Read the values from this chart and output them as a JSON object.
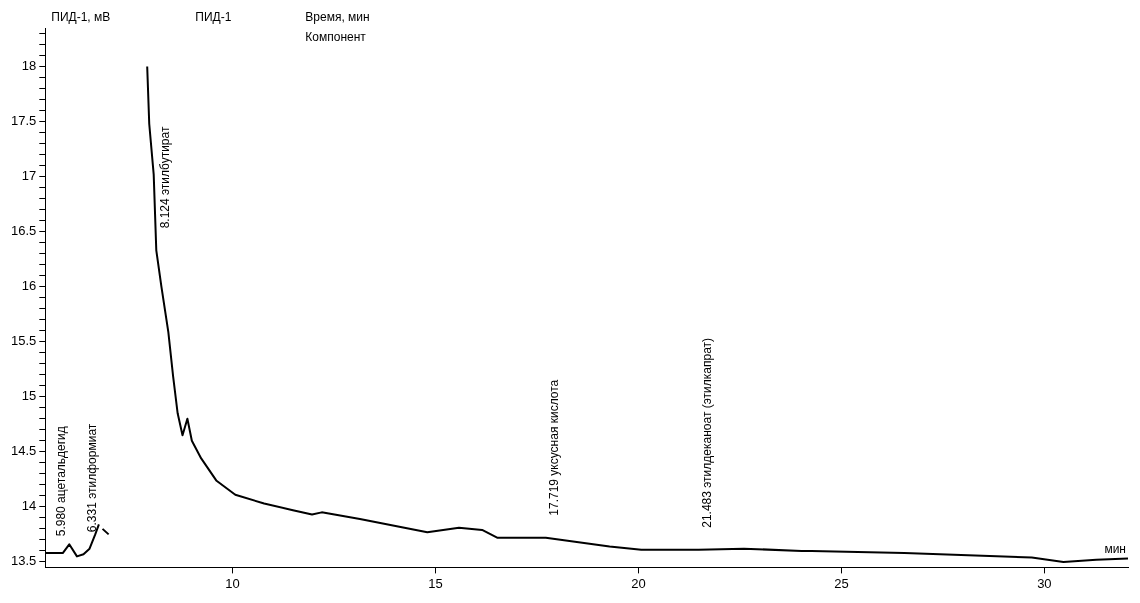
{
  "chart_data": {
    "type": "line",
    "title": "ПИД-1",
    "ylabel": "ПИД-1, мВ",
    "xlabel": "мин",
    "annotations": [
      "Время, мин",
      "Компонент",
      {
        "text": "5.980 ацетальдегид",
        "x": 5.98,
        "y": 13.66
      },
      {
        "text": "6.331 этилформиат",
        "x": 6.331,
        "y": 13.57
      },
      {
        "text": "8.124 этилбутират",
        "x": 8.124,
        "y": 16.33
      },
      {
        "text": "17.719 уксусная кислота",
        "x": 17.719,
        "y": 13.72
      },
      {
        "text": "21.483 этилдеканоат (этилкапрат)",
        "x": 21.483,
        "y": 13.61
      }
    ],
    "x": [
      5.39,
      5.82,
      5.98,
      6.17,
      6.331,
      6.48,
      6.62,
      6.71,
      6.76,
      6.8,
      6.95,
      7.05,
      7.2,
      7.83,
      7.9,
      7.95,
      8.06,
      8.124,
      8.25,
      8.42,
      8.54,
      8.65,
      8.77,
      8.89,
      9.0,
      9.23,
      9.6,
      10.07,
      10.78,
      11.49,
      11.96,
      12.2,
      13.14,
      14.8,
      15.58,
      16.15,
      16.52,
      17.719,
      19.29,
      20.07,
      21.483,
      22.6,
      24.02,
      24.26,
      26.55,
      29.69,
      30.47,
      31.28,
      32.06
    ],
    "series": [
      {
        "color": "#000000",
        "values": [
          13.58,
          13.58,
          13.66,
          13.55,
          13.57,
          13.62,
          13.75,
          13.84,
          null,
          13.8,
          13.75,
          null,
          null,
          null,
          18.0,
          17.48,
          17.02,
          16.33,
          16.0,
          15.59,
          15.18,
          14.85,
          14.65,
          14.8,
          14.6,
          14.44,
          14.24,
          14.11,
          14.03,
          13.97,
          13.93,
          13.95,
          13.89,
          13.77,
          13.81,
          13.79,
          13.72,
          13.72,
          13.64,
          13.61,
          13.61,
          13.62,
          13.6,
          13.6,
          13.58,
          13.54,
          13.5,
          13.52,
          13.53
        ]
      }
    ],
    "xlim": [
      5.39,
      32.06
    ],
    "xticks": [
      10,
      15,
      20,
      25,
      30
    ],
    "ylim": [
      13.45,
      18.35
    ],
    "yticks": [
      13.5,
      {
        "value": 13.6,
        "label": null
      },
      {
        "value": 13.7,
        "label": null
      },
      {
        "value": 13.8,
        "label": null
      },
      {
        "value": 13.9,
        "label": null
      },
      14,
      {
        "value": 14.1,
        "label": null
      },
      {
        "value": 14.2,
        "label": null
      },
      {
        "value": 14.3,
        "label": null
      },
      {
        "value": 14.4,
        "label": null
      },
      14.5,
      {
        "value": 14.6,
        "label": null
      },
      {
        "value": 14.7,
        "label": null
      },
      {
        "value": 14.8,
        "label": null
      },
      {
        "value": 14.9,
        "label": null
      },
      15,
      {
        "value": 15.1,
        "label": null
      },
      {
        "value": 15.2,
        "label": null
      },
      {
        "value": 15.3,
        "label": null
      },
      {
        "value": 15.4,
        "label": null
      },
      15.5,
      {
        "value": 15.6,
        "label": null
      },
      {
        "value": 15.7,
        "label": null
      },
      {
        "value": 15.8,
        "label": null
      },
      {
        "value": 15.9,
        "label": null
      },
      16,
      {
        "value": 16.1,
        "label": null
      },
      {
        "value": 16.2,
        "label": null
      },
      {
        "value": 16.3,
        "label": null
      },
      {
        "value": 16.4,
        "label": null
      },
      16.5,
      {
        "value": 16.6,
        "label": null
      },
      {
        "value": 16.7,
        "label": null
      },
      {
        "value": 16.8,
        "label": null
      },
      {
        "value": 16.9,
        "label": null
      },
      17,
      {
        "value": 17.1,
        "label": null
      },
      {
        "value": 17.2,
        "label": null
      },
      {
        "value": 17.3,
        "label": null
      },
      {
        "value": 17.4,
        "label": null
      },
      17.5,
      {
        "value": 17.6,
        "label": null
      },
      {
        "value": 17.7,
        "label": null
      },
      {
        "value": 17.8,
        "label": null
      },
      {
        "value": 17.9,
        "label": null
      },
      18,
      {
        "value": 18.1,
        "label": null
      },
      {
        "value": 18.2,
        "label": null
      },
      {
        "value": 18.3,
        "label": null
      }
    ],
    "grid": false,
    "legend": false,
    "marker": "none",
    "line_style": "solid"
  }
}
